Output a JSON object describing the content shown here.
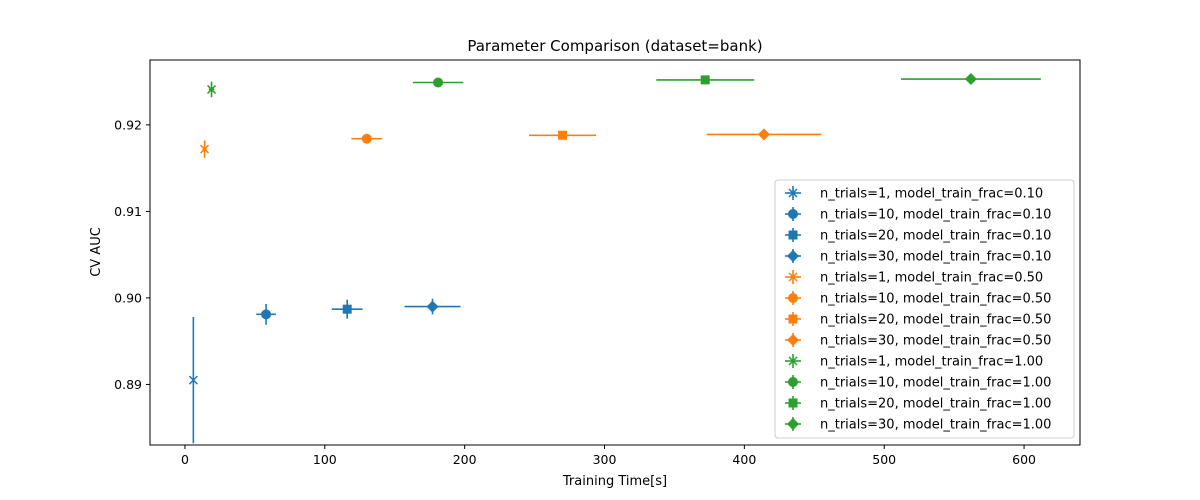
{
  "chart_data": {
    "type": "scatter",
    "title": "Parameter Comparison (dataset=bank)",
    "xlabel": "Training Time[s]",
    "ylabel": "CV AUC",
    "xlim": [
      -25,
      640
    ],
    "ylim": [
      0.883,
      0.9275
    ],
    "xticks": [
      0,
      100,
      200,
      300,
      400,
      500,
      600
    ],
    "xtick_labels": [
      "0",
      "100",
      "200",
      "300",
      "400",
      "500",
      "600"
    ],
    "yticks": [
      0.89,
      0.9,
      0.91,
      0.92
    ],
    "ytick_labels": [
      "0.89",
      "0.90",
      "0.91",
      "0.92"
    ],
    "grid": false,
    "legend_position": "lower right",
    "error_bars": true,
    "colors": {
      "0.10": "#1f77b4",
      "0.50": "#ff7f0e",
      "1.00": "#2ca02c"
    },
    "series": [
      {
        "name": "n_trials=1, model_train_frac=0.10",
        "color": "#1f77b4",
        "marker": "x",
        "x": 6,
        "y": 0.8905,
        "xerr": 0.5,
        "yerr": 0.0073
      },
      {
        "name": "n_trials=10, model_train_frac=0.10",
        "color": "#1f77b4",
        "marker": "o",
        "x": 58,
        "y": 0.8981,
        "xerr": 7,
        "yerr": 0.0012
      },
      {
        "name": "n_trials=20, model_train_frac=0.10",
        "color": "#1f77b4",
        "marker": "s",
        "x": 116,
        "y": 0.8987,
        "xerr": 11,
        "yerr": 0.0011
      },
      {
        "name": "n_trials=30, model_train_frac=0.10",
        "color": "#1f77b4",
        "marker": "D",
        "x": 177,
        "y": 0.899,
        "xerr": 20,
        "yerr": 0.0009
      },
      {
        "name": "n_trials=1, model_train_frac=0.50",
        "color": "#ff7f0e",
        "marker": "x",
        "x": 14,
        "y": 0.9172,
        "xerr": 1.5,
        "yerr": 0.001
      },
      {
        "name": "n_trials=10, model_train_frac=0.50",
        "color": "#ff7f0e",
        "marker": "o",
        "x": 130,
        "y": 0.9184,
        "xerr": 11,
        "yerr": 0.0004
      },
      {
        "name": "n_trials=20, model_train_frac=0.50",
        "color": "#ff7f0e",
        "marker": "s",
        "x": 270,
        "y": 0.9188,
        "xerr": 24,
        "yerr": 0.0005
      },
      {
        "name": "n_trials=30, model_train_frac=0.50",
        "color": "#ff7f0e",
        "marker": "D",
        "x": 414,
        "y": 0.9189,
        "xerr": 41,
        "yerr": 0.0003
      },
      {
        "name": "n_trials=1, model_train_frac=1.00",
        "color": "#2ca02c",
        "marker": "x",
        "x": 19,
        "y": 0.9241,
        "xerr": 2,
        "yerr": 0.0009
      },
      {
        "name": "n_trials=10, model_train_frac=1.00",
        "color": "#2ca02c",
        "marker": "o",
        "x": 181,
        "y": 0.9249,
        "xerr": 18,
        "yerr": 0.0004
      },
      {
        "name": "n_trials=20, model_train_frac=1.00",
        "color": "#2ca02c",
        "marker": "s",
        "x": 372,
        "y": 0.9252,
        "xerr": 35,
        "yerr": 0.0004
      },
      {
        "name": "n_trials=30, model_train_frac=1.00",
        "color": "#2ca02c",
        "marker": "D",
        "x": 562,
        "y": 0.9253,
        "xerr": 50,
        "yerr": 0.0002
      }
    ]
  }
}
